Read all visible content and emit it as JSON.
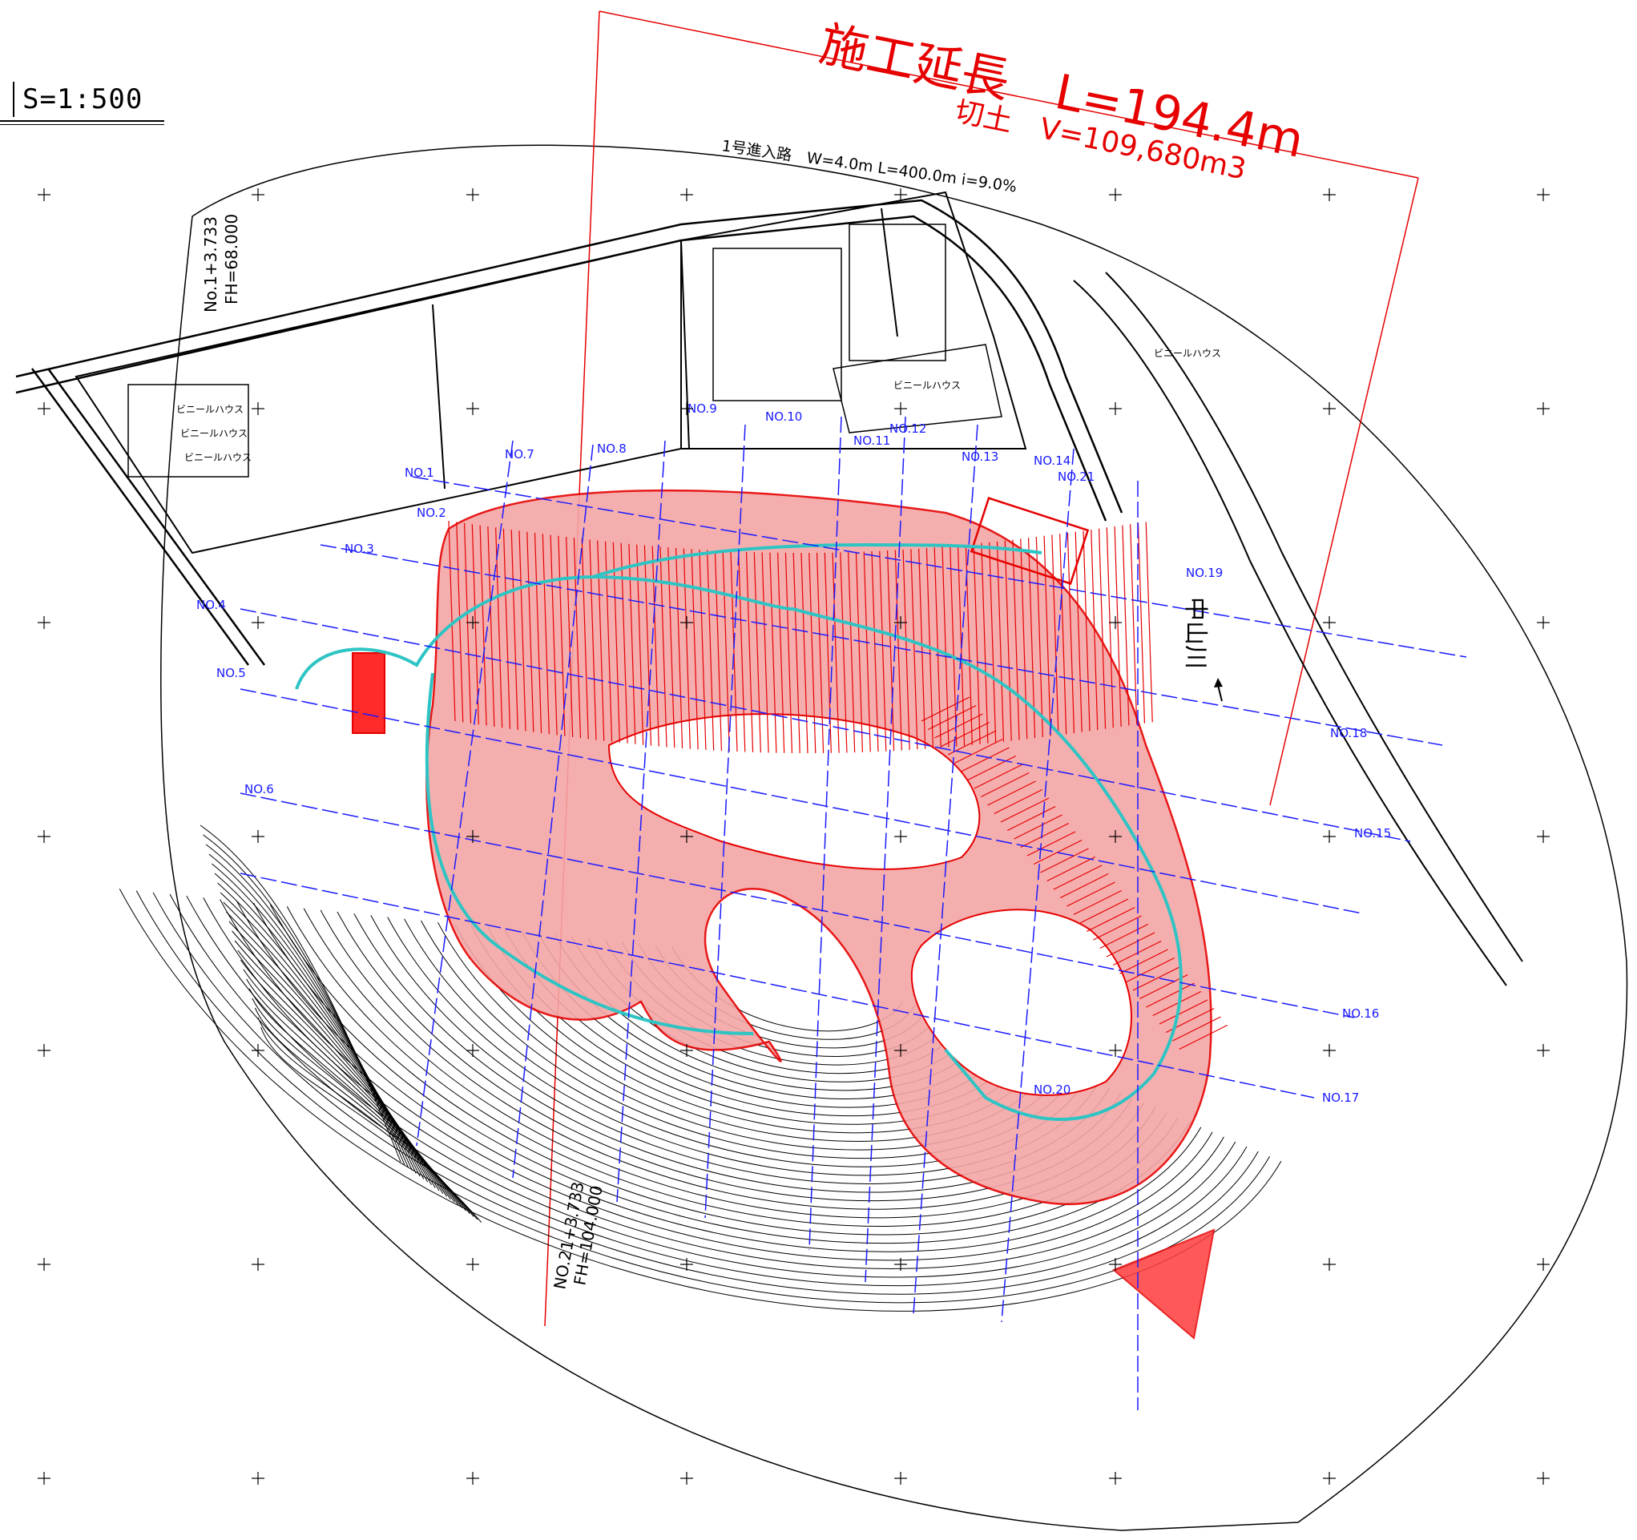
{
  "scale": {
    "label": "S=1:500"
  },
  "title": {
    "length_text": "施工延長　L=194.4m",
    "volume_text": "切土　V=109,680m3"
  },
  "road_label": "1号進入路　W=4.0m L=400.0m i=9.0%",
  "start_station": {
    "station": "No.1+3.733",
    "fh": "FH=68.000"
  },
  "end_station": {
    "station": "NO.21+3.733",
    "fh": "FH=104.000"
  },
  "north_label": "中山川",
  "house_labels": [
    "ビニールハウス",
    "ビニールハウス",
    "ビニールハウス",
    "ビニールハウス",
    "ビニールハウス"
  ],
  "section_labels": [
    "NO.1",
    "NO.2",
    "NO.3",
    "NO.4",
    "NO.5",
    "NO.6",
    "NO.7",
    "NO.8",
    "NO.9",
    "NO.10",
    "NO.11",
    "NO.12",
    "NO.13",
    "NO.14",
    "NO.15",
    "NO.16",
    "NO.17",
    "NO.18",
    "NO.19",
    "NO.20",
    "NO.21"
  ],
  "colors": {
    "cut_fill": "#f4a6a6",
    "cut_line": "#e60000",
    "road_center": "#2ec4c4",
    "section_line": "#1a1aff",
    "contour": "#000000",
    "frame": "#000000"
  },
  "icons": [
    "grid-cross-icon",
    "north-arrow-icon"
  ]
}
